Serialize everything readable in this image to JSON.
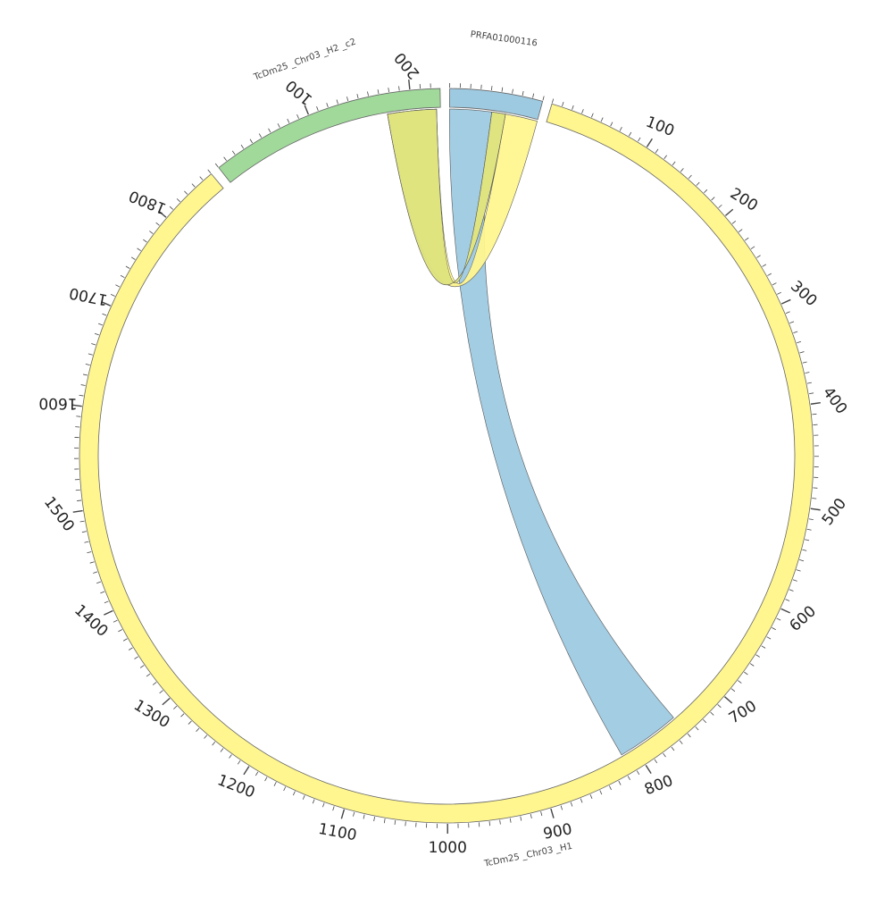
{
  "chart_data": {
    "type": "chord",
    "title": "",
    "units_per_tick_minor": 10,
    "units_per_tick_major": 100,
    "gap_degrees": 1.5,
    "sequences": [
      {
        "name": "PRFA01000116",
        "length": 90,
        "color": "#9ecae1"
      },
      {
        "name": "TcDm25 _Chr03 _H1",
        "length": 1860,
        "color": "#fff68f"
      },
      {
        "name": "TcDm25 _Chr03 _H2 _c2",
        "length": 229,
        "color": "#a1d99b"
      }
    ],
    "links": [
      {
        "from": {
          "seq": "PRFA01000116",
          "start": 0,
          "end": 43
        },
        "to": {
          "seq": "TcDm25 _Chr03 _H1",
          "start": 750,
          "end": 815
        },
        "color": "#9ecae1"
      },
      {
        "from": {
          "seq": "PRFA01000116",
          "start": 43,
          "end": 57
        },
        "to": {
          "seq": "TcDm25 _Chr03 _H2 _c2",
          "start": 175,
          "end": 225
        },
        "color": "#fff68f"
      },
      {
        "from": {
          "seq": "PRFA01000116",
          "start": 57,
          "end": 90
        },
        "to": {
          "seq": "TcDm25 _Chr03 _H2 _c2",
          "start": 175,
          "end": 225
        },
        "color": "#fff68f"
      },
      {
        "from": {
          "seq": "PRFA01000116",
          "start": 43,
          "end": 57
        },
        "to": {
          "seq": "TcDm25 _Chr03 _H2 _c2",
          "start": 175,
          "end": 225
        },
        "color": "#dde37e"
      }
    ],
    "tick_labels": {
      "PRFA01000116": [],
      "TcDm25 _Chr03 _H1": [
        "100",
        "200",
        "300",
        "400",
        "500",
        "600",
        "700",
        "800",
        "900",
        "1000",
        "1100",
        "1200",
        "1300",
        "1400",
        "1500",
        "1600",
        "1700",
        "1800"
      ],
      "TcDm25 _Chr03 _H2 _c2": [
        "100",
        "200"
      ]
    }
  }
}
